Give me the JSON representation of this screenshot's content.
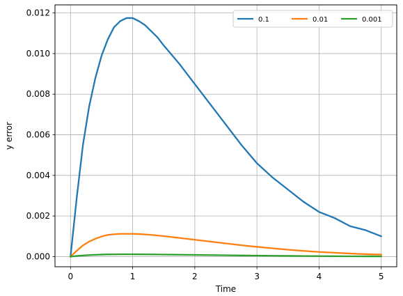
{
  "chart_data": {
    "type": "line",
    "title": "",
    "xlabel": "Time",
    "ylabel": "y error",
    "xlim": [
      -0.25,
      5.25
    ],
    "ylim": [
      -0.0005,
      0.0124
    ],
    "grid": true,
    "legend_position": "top-right",
    "legend_columns": 3,
    "x_ticks": [
      {
        "value": 0,
        "label": "0"
      },
      {
        "value": 1,
        "label": "1"
      },
      {
        "value": 2,
        "label": "2"
      },
      {
        "value": 3,
        "label": "3"
      },
      {
        "value": 4,
        "label": "4"
      },
      {
        "value": 5,
        "label": "5"
      }
    ],
    "y_ticks": [
      {
        "value": 0.0,
        "label": "0.000"
      },
      {
        "value": 0.002,
        "label": "0.002"
      },
      {
        "value": 0.004,
        "label": "0.004"
      },
      {
        "value": 0.006,
        "label": "0.006"
      },
      {
        "value": 0.008,
        "label": "0.008"
      },
      {
        "value": 0.01,
        "label": "0.010"
      },
      {
        "value": 0.012,
        "label": "0.012"
      }
    ],
    "x": [
      0,
      0.1,
      0.2,
      0.3,
      0.4,
      0.5,
      0.6,
      0.7,
      0.8,
      0.9,
      1.0,
      1.1,
      1.2,
      1.3,
      1.4,
      1.5,
      1.75,
      2.0,
      2.25,
      2.5,
      2.75,
      3.0,
      3.25,
      3.5,
      3.75,
      4.0,
      4.25,
      4.5,
      4.75,
      5.0
    ],
    "series": [
      {
        "name": "0.1",
        "color": "#1f77b4",
        "values": [
          0.0,
          0.0029,
          0.0055,
          0.0074,
          0.0088,
          0.0099,
          0.0107,
          0.0113,
          0.0116,
          0.01175,
          0.01175,
          0.0116,
          0.0114,
          0.0111,
          0.0108,
          0.0104,
          0.0095,
          0.0085,
          0.0075,
          0.0065,
          0.0055,
          0.0046,
          0.0039,
          0.0033,
          0.0027,
          0.0022,
          0.0019,
          0.0015,
          0.0013,
          0.001
        ]
      },
      {
        "name": "0.01",
        "color": "#ff7f0e",
        "values": [
          0.0,
          0.00029,
          0.00055,
          0.00074,
          0.00088,
          0.00099,
          0.00107,
          0.0011,
          0.00112,
          0.00112,
          0.00112,
          0.00111,
          0.00109,
          0.00107,
          0.00104,
          0.00101,
          0.00092,
          0.00083,
          0.00074,
          0.00065,
          0.00056,
          0.00048,
          0.00041,
          0.00034,
          0.00028,
          0.00023,
          0.00019,
          0.00015,
          0.00012,
          0.0001
        ]
      },
      {
        "name": "0.001",
        "color": "#2ca02c",
        "values": [
          0.0,
          3e-05,
          5.5e-05,
          7.4e-05,
          8.8e-05,
          9.9e-05,
          0.000107,
          0.00011,
          0.000112,
          0.000112,
          0.000112,
          0.000111,
          0.000109,
          0.000107,
          0.000104,
          0.000101,
          9.2e-05,
          8.3e-05,
          7.4e-05,
          6.5e-05,
          5.6e-05,
          4.8e-05,
          4.1e-05,
          3.4e-05,
          2.8e-05,
          2.3e-05,
          1.9e-05,
          1.5e-05,
          1.2e-05,
          1e-05
        ]
      }
    ]
  }
}
